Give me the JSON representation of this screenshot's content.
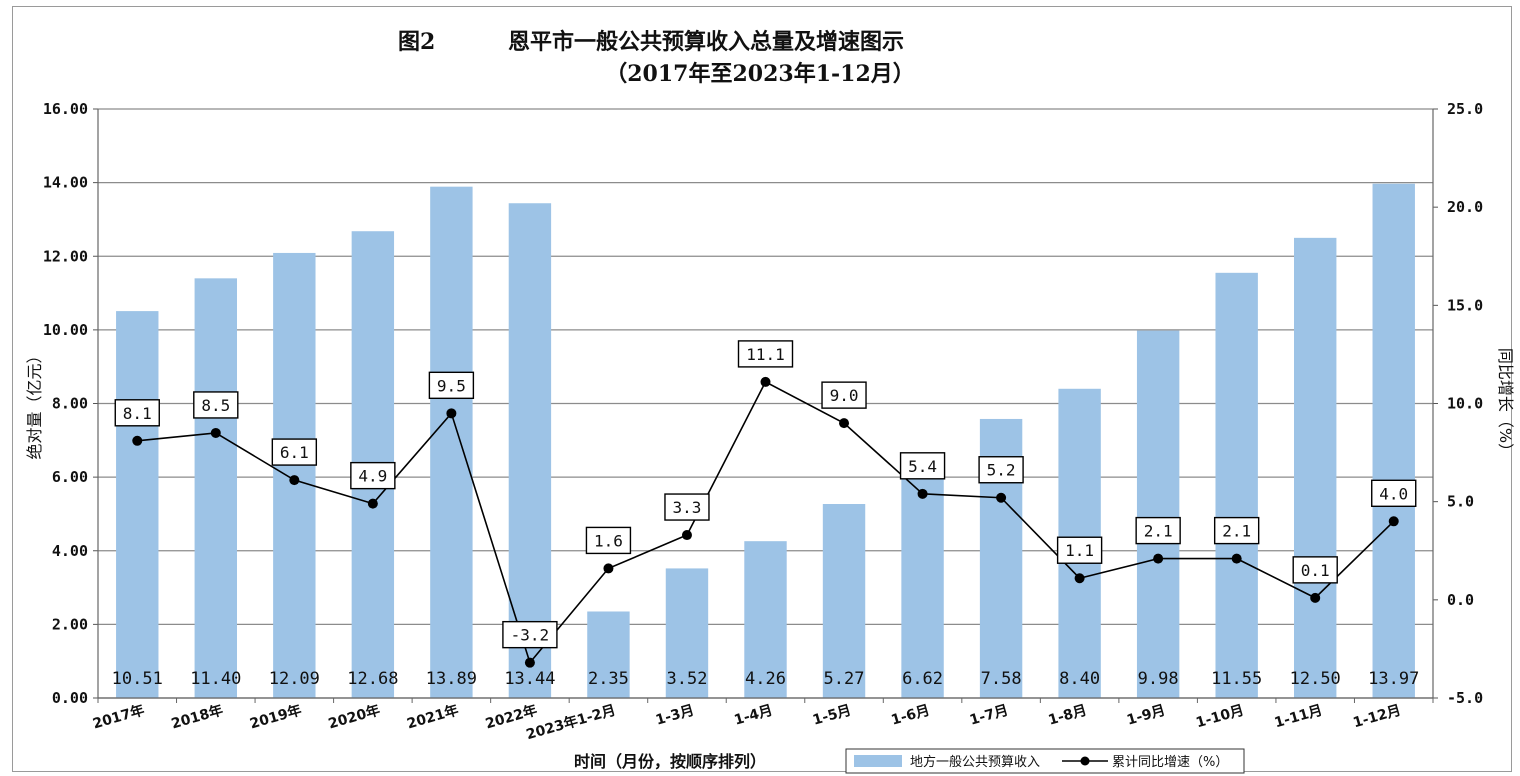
{
  "figure_label": "图2",
  "chart_data": {
    "type": "bar",
    "title": "恩平市一般公共预算收入总量及增速图示",
    "subtitle": "（2017年至2023年1-12月）",
    "xlabel": "时间（月份，按顺序排列）",
    "ylabel_left": "绝对量（亿元）",
    "ylabel_right": "同比增长（%）",
    "categories": [
      "2017年",
      "2018年",
      "2019年",
      "2020年",
      "2021年",
      "2022年",
      "2023年1-2月",
      "1-3月",
      "1-4月",
      "1-5月",
      "1-6月",
      "1-7月",
      "1-8月",
      "1-9月",
      "1-10月",
      "1-11月",
      "1-12月"
    ],
    "y_left_ticks": [
      "0.00",
      "2.00",
      "4.00",
      "6.00",
      "8.00",
      "10.00",
      "12.00",
      "14.00",
      "16.00"
    ],
    "y_right_ticks": [
      "-5.0",
      "0.0",
      "5.0",
      "10.0",
      "15.0",
      "20.0",
      "25.0"
    ],
    "y_left_range": [
      0,
      16
    ],
    "y_right_range": [
      -5,
      25
    ],
    "series": [
      {
        "name": "地方一般公共预算收入",
        "type": "bar",
        "axis": "left",
        "color": "#9dc3e6",
        "values": [
          10.51,
          11.4,
          12.09,
          12.68,
          13.89,
          13.44,
          2.35,
          3.52,
          4.26,
          5.27,
          6.62,
          7.58,
          8.4,
          9.98,
          11.55,
          12.5,
          13.97
        ],
        "labels": [
          "10.51",
          "11.40",
          "12.09",
          "12.68",
          "13.89",
          "13.44",
          "2.35",
          "3.52",
          "4.26",
          "5.27",
          "6.62",
          "7.58",
          "8.40",
          "9.98",
          "11.55",
          "12.50",
          "13.97"
        ]
      },
      {
        "name": "累计同比增速（%）",
        "type": "line",
        "axis": "right",
        "color": "#000000",
        "values": [
          8.1,
          8.5,
          6.1,
          4.9,
          9.5,
          -3.2,
          1.6,
          3.3,
          11.1,
          9.0,
          5.4,
          5.2,
          1.1,
          2.1,
          2.1,
          0.1,
          4.0
        ],
        "labels": [
          "8.1",
          "8.5",
          "6.1",
          "4.9",
          "9.5",
          "-3.2",
          "1.6",
          "3.3",
          "11.1",
          "9.0",
          "5.4",
          "5.2",
          "1.1",
          "2.1",
          "2.1",
          "0.1",
          "4.0"
        ]
      }
    ],
    "grid": true,
    "legend": "bottom-right"
  }
}
